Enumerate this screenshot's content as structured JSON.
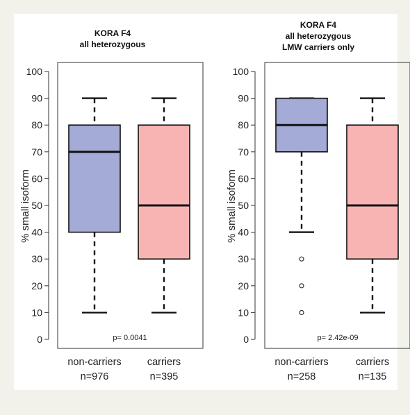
{
  "chart_data": [
    {
      "type": "boxplot",
      "title": "KORA F4",
      "subtitle": "all heterozygous",
      "subtitle2": "",
      "ylabel": "% small isoform",
      "ylim": [
        0,
        100
      ],
      "yticks": [
        "0",
        "10",
        "20",
        "30",
        "40",
        "50",
        "60",
        "70",
        "80",
        "90",
        "100"
      ],
      "annotation": "p= 0.0041",
      "groups": [
        {
          "name": "non-carriers",
          "n_label": "n=976",
          "color": "#a3abd6",
          "whisker_low": 10,
          "q1": 40,
          "median": 70,
          "q3": 80,
          "whisker_high": 90,
          "outliers": []
        },
        {
          "name": "carriers",
          "n_label": "n=395",
          "color": "#f8b3b3",
          "whisker_low": 10,
          "q1": 30,
          "median": 50,
          "q3": 80,
          "whisker_high": 90,
          "outliers": []
        }
      ]
    },
    {
      "type": "boxplot",
      "title": "KORA F4",
      "subtitle": "all heterozygous",
      "subtitle2": "LMW carriers only",
      "ylabel": "% small isoform",
      "ylim": [
        0,
        100
      ],
      "yticks": [
        "0",
        "10",
        "20",
        "30",
        "40",
        "50",
        "60",
        "70",
        "80",
        "90",
        "100"
      ],
      "annotation": "p= 2.42e-09",
      "groups": [
        {
          "name": "non-carriers",
          "n_label": "n=258",
          "color": "#a3abd6",
          "whisker_low": 40,
          "q1": 70,
          "median": 80,
          "q3": 90,
          "whisker_high": 90,
          "outliers": [
            30,
            20,
            10
          ]
        },
        {
          "name": "carriers",
          "n_label": "n=135",
          "color": "#f8b3b3",
          "whisker_low": 10,
          "q1": 30,
          "median": 50,
          "q3": 80,
          "whisker_high": 90,
          "outliers": []
        }
      ]
    }
  ]
}
